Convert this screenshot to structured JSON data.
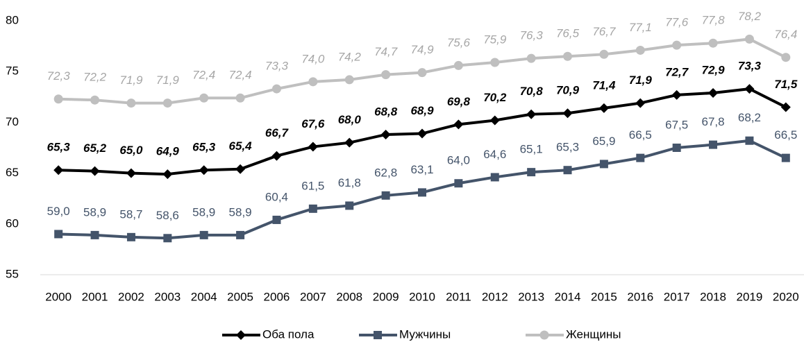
{
  "chart_data": {
    "type": "line",
    "categories": [
      "2000",
      "2001",
      "2002",
      "2003",
      "2004",
      "2005",
      "2006",
      "2007",
      "2008",
      "2009",
      "2010",
      "2011",
      "2012",
      "2013",
      "2014",
      "2015",
      "2016",
      "2017",
      "2018",
      "2019",
      "2020"
    ],
    "ylim": [
      55,
      80
    ],
    "yticks": [
      55,
      60,
      65,
      70,
      75,
      80
    ],
    "grid": false,
    "legend": "bottom",
    "series": [
      {
        "name": "Оба пола",
        "color": "#000000",
        "marker": "diamond",
        "values": [
          65.3,
          65.2,
          65.0,
          64.9,
          65.3,
          65.4,
          66.7,
          67.6,
          68.0,
          68.8,
          68.9,
          69.8,
          70.2,
          70.8,
          70.9,
          71.4,
          71.9,
          72.7,
          72.9,
          73.3,
          71.5
        ],
        "value_labels": [
          "65,3",
          "65,2",
          "65,0",
          "64,9",
          "65,3",
          "65,4",
          "66,7",
          "67,6",
          "68,0",
          "68,8",
          "68,9",
          "69,8",
          "70,2",
          "70,8",
          "70,9",
          "71,4",
          "71,9",
          "72,7",
          "72,9",
          "73,3",
          "71,5"
        ]
      },
      {
        "name": "Мужчины",
        "color": "#44546a",
        "marker": "square",
        "values": [
          59.0,
          58.9,
          58.7,
          58.6,
          58.9,
          58.9,
          60.4,
          61.5,
          61.8,
          62.8,
          63.1,
          64.0,
          64.6,
          65.1,
          65.3,
          65.9,
          66.5,
          67.5,
          67.8,
          68.2,
          66.5
        ],
        "value_labels": [
          "59,0",
          "58,9",
          "58,7",
          "58,6",
          "58,9",
          "58,9",
          "60,4",
          "61,5",
          "61,8",
          "62,8",
          "63,1",
          "64,0",
          "64,6",
          "65,1",
          "65,3",
          "65,9",
          "66,5",
          "67,5",
          "67,8",
          "68,2",
          "66,5"
        ]
      },
      {
        "name": "Женщины",
        "color": "#bfbfbf",
        "marker": "circle",
        "values": [
          72.3,
          72.2,
          71.9,
          71.9,
          72.4,
          72.4,
          73.3,
          74.0,
          74.2,
          74.7,
          74.9,
          75.6,
          75.9,
          76.3,
          76.5,
          76.7,
          77.1,
          77.6,
          77.8,
          78.2,
          76.4
        ],
        "value_labels": [
          "72,3",
          "72,2",
          "71,9",
          "71,9",
          "72,4",
          "72,4",
          "73,3",
          "74,0",
          "74,2",
          "74,7",
          "74,9",
          "75,6",
          "75,9",
          "76,3",
          "76,5",
          "76,7",
          "77,1",
          "77,6",
          "77,8",
          "78,2",
          "76,4"
        ]
      }
    ]
  }
}
